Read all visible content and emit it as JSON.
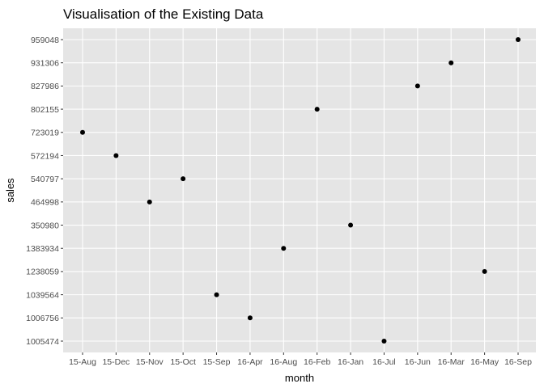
{
  "chart_data": {
    "type": "scatter",
    "title": "Visualisation of the Existing Data",
    "xlabel": "month",
    "ylabel": "sales",
    "x_categories": [
      "15-Aug",
      "15-Dec",
      "15-Nov",
      "15-Oct",
      "15-Sep",
      "16-Apr",
      "16-Aug",
      "16-Feb",
      "16-Jan",
      "16-Jul",
      "16-Jun",
      "16-Mar",
      "16-May",
      "16-Sep"
    ],
    "y_categories": [
      "1005474",
      "1006756",
      "1039564",
      "1238059",
      "1383934",
      "350980",
      "464998",
      "540797",
      "572194",
      "723019",
      "802155",
      "827986",
      "931306",
      "959048"
    ],
    "points": [
      {
        "x": "15-Aug",
        "y": "723019"
      },
      {
        "x": "15-Dec",
        "y": "572194"
      },
      {
        "x": "15-Nov",
        "y": "464998"
      },
      {
        "x": "15-Oct",
        "y": "540797"
      },
      {
        "x": "15-Sep",
        "y": "1039564"
      },
      {
        "x": "16-Apr",
        "y": "1006756"
      },
      {
        "x": "16-Aug",
        "y": "1383934"
      },
      {
        "x": "16-Feb",
        "y": "802155"
      },
      {
        "x": "16-Jan",
        "y": "350980"
      },
      {
        "x": "16-Jul",
        "y": "1005474"
      },
      {
        "x": "16-Jun",
        "y": "827986"
      },
      {
        "x": "16-Mar",
        "y": "931306"
      },
      {
        "x": "16-May",
        "y": "1238059"
      },
      {
        "x": "16-Sep",
        "y": "959048"
      }
    ],
    "grid": true,
    "legend": "none",
    "colors": {
      "panel": "#e5e5e5",
      "grid": "#ffffff",
      "point": "#000000",
      "tick": "#4d4d4d"
    }
  }
}
